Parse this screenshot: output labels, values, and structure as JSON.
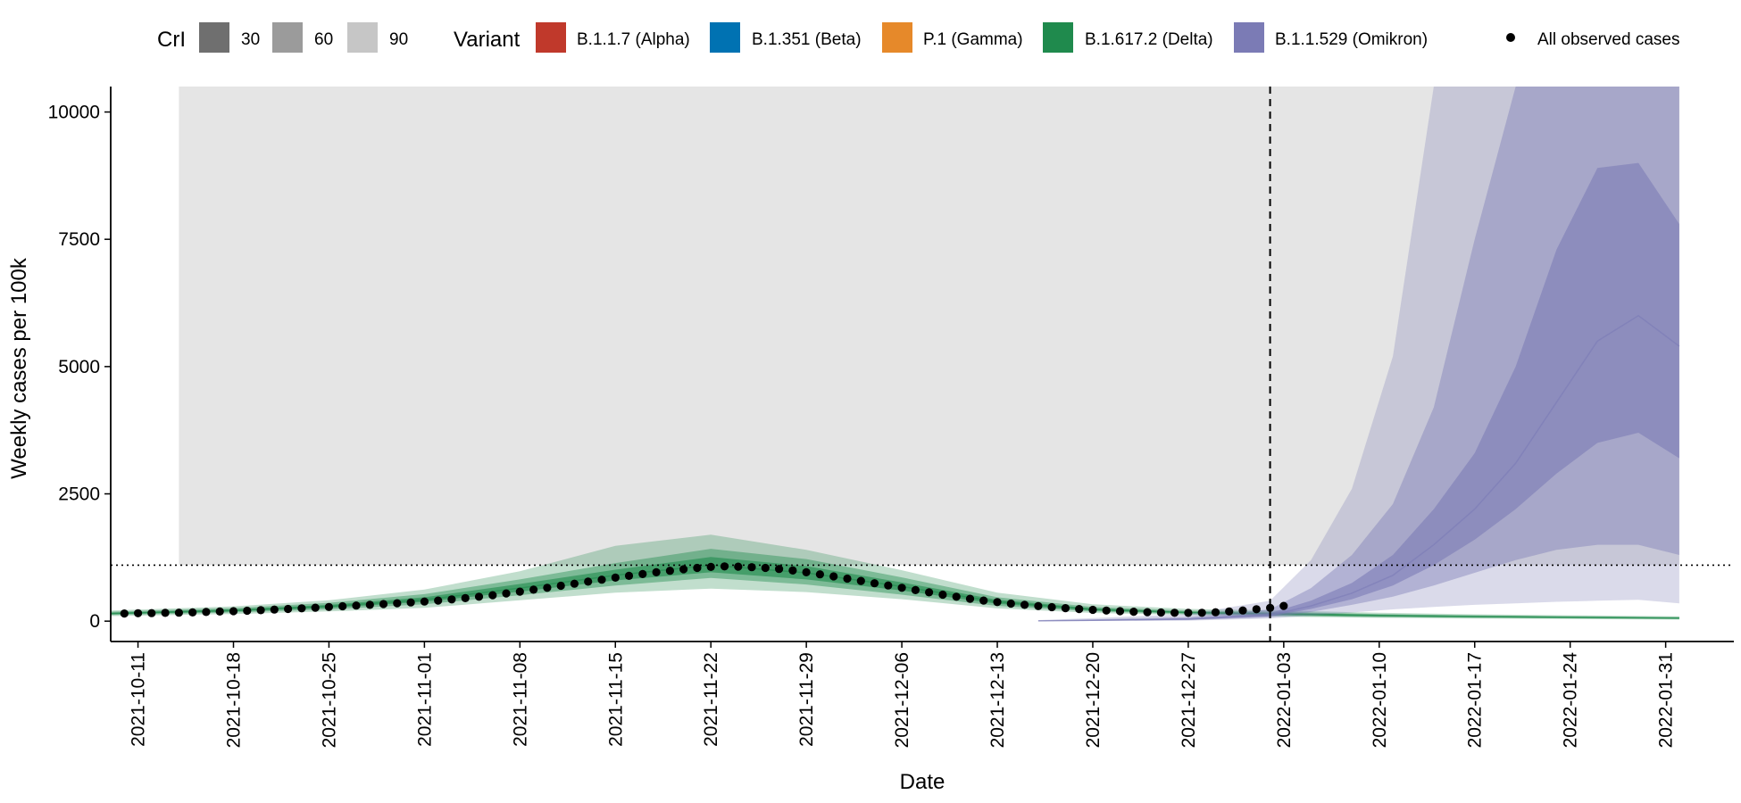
{
  "chart_data": {
    "type": "area",
    "xlabel": "Date",
    "ylabel": "Weekly cases per 100k",
    "x_range": [
      "2021-10-09",
      "2022-02-05"
    ],
    "ylim": [
      -400,
      10500
    ],
    "y_ticks": [
      0,
      2500,
      5000,
      7500,
      10000
    ],
    "y_tick_labels": [
      "0",
      "2500",
      "5000",
      "7500",
      "10000"
    ],
    "x_ticks": [
      "2021-10-11",
      "2021-10-18",
      "2021-10-25",
      "2021-11-01",
      "2021-11-08",
      "2021-11-15",
      "2021-11-22",
      "2021-11-29",
      "2021-12-06",
      "2021-12-13",
      "2021-12-20",
      "2021-12-27",
      "2022-01-03",
      "2022-01-10",
      "2022-01-17",
      "2022-01-24",
      "2022-01-31"
    ],
    "shaded_region": {
      "from": "2021-10-14",
      "to": "2022-02-01"
    },
    "forecast_start": "2022-01-02",
    "reference_level": 1100,
    "legend": {
      "position": "top",
      "cri_title": "CrI",
      "cri_levels": [
        {
          "label": "30",
          "color": "#6f6f6f"
        },
        {
          "label": "60",
          "color": "#9b9b9b"
        },
        {
          "label": "90",
          "color": "#c6c6c6"
        }
      ],
      "variant_title": "Variant",
      "variants": [
        {
          "label": "B.1.1.7 (Alpha)",
          "color": "#c0392b"
        },
        {
          "label": "B.1.351 (Beta)",
          "color": "#0072b2"
        },
        {
          "label": "P.1 (Gamma)",
          "color": "#e6892a"
        },
        {
          "label": "B.1.617.2 (Delta)",
          "color": "#1f8a4d"
        },
        {
          "label": "B.1.1.529 (Omikron)",
          "color": "#7b7bb5"
        }
      ],
      "observed_label": "All observed cases"
    },
    "series": [
      {
        "name": "B.1.617.2 (Delta)",
        "color": "#1f8a4d",
        "x": [
          "2021-10-09",
          "2021-10-18",
          "2021-10-25",
          "2021-11-01",
          "2021-11-08",
          "2021-11-15",
          "2021-11-22",
          "2021-11-29",
          "2021-12-06",
          "2021-12-13",
          "2021-12-20",
          "2021-12-27",
          "2022-01-03",
          "2022-01-10",
          "2022-01-17",
          "2022-01-24",
          "2022-02-01"
        ],
        "median": [
          150,
          210,
          290,
          420,
          650,
          900,
          1100,
          950,
          680,
          380,
          230,
          170,
          140,
          110,
          90,
          75,
          60
        ],
        "ci30": [
          [
            135,
            165
          ],
          [
            190,
            230
          ],
          [
            260,
            320
          ],
          [
            380,
            470
          ],
          [
            580,
            730
          ],
          [
            800,
            1010
          ],
          [
            960,
            1260
          ],
          [
            820,
            1080
          ],
          [
            600,
            760
          ],
          [
            340,
            420
          ],
          [
            210,
            250
          ],
          [
            155,
            185
          ],
          [
            120,
            160
          ],
          [
            95,
            125
          ],
          [
            78,
            102
          ],
          [
            64,
            86
          ],
          [
            50,
            70
          ]
        ],
        "ci60": [
          [
            120,
            185
          ],
          [
            170,
            255
          ],
          [
            230,
            360
          ],
          [
            330,
            530
          ],
          [
            510,
            820
          ],
          [
            700,
            1140
          ],
          [
            850,
            1420
          ],
          [
            720,
            1220
          ],
          [
            520,
            860
          ],
          [
            300,
            470
          ],
          [
            190,
            280
          ],
          [
            140,
            205
          ],
          [
            105,
            180
          ],
          [
            80,
            140
          ],
          [
            65,
            115
          ],
          [
            54,
            98
          ],
          [
            40,
            80
          ]
        ],
        "ci90": [
          [
            100,
            210
          ],
          [
            140,
            290
          ],
          [
            190,
            410
          ],
          [
            260,
            620
          ],
          [
            410,
            980
          ],
          [
            560,
            1480
          ],
          [
            640,
            1700
          ],
          [
            570,
            1400
          ],
          [
            430,
            1000
          ],
          [
            250,
            560
          ],
          [
            160,
            330
          ],
          [
            120,
            240
          ],
          [
            85,
            210
          ],
          [
            65,
            165
          ],
          [
            52,
            135
          ],
          [
            42,
            115
          ],
          [
            30,
            95
          ]
        ]
      },
      {
        "name": "B.1.1.529 (Omikron)",
        "color": "#7b7bb5",
        "x": [
          "2021-12-16",
          "2021-12-20",
          "2021-12-27",
          "2022-01-02",
          "2022-01-05",
          "2022-01-08",
          "2022-01-11",
          "2022-01-14",
          "2022-01-17",
          "2022-01-20",
          "2022-01-23",
          "2022-01-26",
          "2022-01-29",
          "2022-02-01"
        ],
        "median": [
          5,
          15,
          40,
          120,
          300,
          550,
          900,
          1500,
          2200,
          3100,
          4300,
          5500,
          6000,
          5400
        ],
        "ci30": [
          [
            3,
            8
          ],
          [
            10,
            22
          ],
          [
            30,
            55
          ],
          [
            95,
            160
          ],
          [
            240,
            400
          ],
          [
            430,
            750
          ],
          [
            700,
            1300
          ],
          [
            1100,
            2200
          ],
          [
            1600,
            3300
          ],
          [
            2200,
            5000
          ],
          [
            2900,
            7300
          ],
          [
            3500,
            8900
          ],
          [
            3700,
            9000
          ],
          [
            3200,
            7800
          ]
        ],
        "ci60": [
          [
            2,
            12
          ],
          [
            8,
            35
          ],
          [
            20,
            80
          ],
          [
            75,
            230
          ],
          [
            180,
            650
          ],
          [
            320,
            1300
          ],
          [
            480,
            2300
          ],
          [
            700,
            4200
          ],
          [
            950,
            7500
          ],
          [
            1200,
            10500
          ],
          [
            1400,
            10500
          ],
          [
            1500,
            10500
          ],
          [
            1500,
            10500
          ],
          [
            1300,
            10500
          ]
        ],
        "ci90": [
          [
            0,
            20
          ],
          [
            3,
            60
          ],
          [
            10,
            140
          ],
          [
            50,
            400
          ],
          [
            110,
            1200
          ],
          [
            170,
            2600
          ],
          [
            230,
            5200
          ],
          [
            280,
            10500
          ],
          [
            320,
            10500
          ],
          [
            350,
            10500
          ],
          [
            380,
            10500
          ],
          [
            400,
            10500
          ],
          [
            420,
            10500
          ],
          [
            350,
            10500
          ]
        ]
      }
    ],
    "observed": {
      "name": "All observed cases",
      "color": "#000000",
      "x": [
        "2021-10-10",
        "2021-10-11",
        "2021-10-12",
        "2021-10-13",
        "2021-10-14",
        "2021-10-15",
        "2021-10-16",
        "2021-10-17",
        "2021-10-18",
        "2021-10-19",
        "2021-10-20",
        "2021-10-21",
        "2021-10-22",
        "2021-10-23",
        "2021-10-24",
        "2021-10-25",
        "2021-10-26",
        "2021-10-27",
        "2021-10-28",
        "2021-10-29",
        "2021-10-30",
        "2021-10-31",
        "2021-11-01",
        "2021-11-02",
        "2021-11-03",
        "2021-11-04",
        "2021-11-05",
        "2021-11-06",
        "2021-11-07",
        "2021-11-08",
        "2021-11-09",
        "2021-11-10",
        "2021-11-11",
        "2021-11-12",
        "2021-11-13",
        "2021-11-14",
        "2021-11-15",
        "2021-11-16",
        "2021-11-17",
        "2021-11-18",
        "2021-11-19",
        "2021-11-20",
        "2021-11-21",
        "2021-11-22",
        "2021-11-23",
        "2021-11-24",
        "2021-11-25",
        "2021-11-26",
        "2021-11-27",
        "2021-11-28",
        "2021-11-29",
        "2021-11-30",
        "2021-12-01",
        "2021-12-02",
        "2021-12-03",
        "2021-12-04",
        "2021-12-05",
        "2021-12-06",
        "2021-12-07",
        "2021-12-08",
        "2021-12-09",
        "2021-12-10",
        "2021-12-11",
        "2021-12-12",
        "2021-12-13",
        "2021-12-14",
        "2021-12-15",
        "2021-12-16",
        "2021-12-17",
        "2021-12-18",
        "2021-12-19",
        "2021-12-20",
        "2021-12-21",
        "2021-12-22",
        "2021-12-23",
        "2021-12-24",
        "2021-12-25",
        "2021-12-26",
        "2021-12-27",
        "2021-12-28",
        "2021-12-29",
        "2021-12-30",
        "2021-12-31",
        "2022-01-01",
        "2022-01-02",
        "2022-01-03"
      ],
      "y": [
        150,
        155,
        158,
        162,
        166,
        172,
        180,
        188,
        195,
        205,
        215,
        228,
        240,
        252,
        265,
        278,
        292,
        306,
        320,
        336,
        352,
        368,
        385,
        405,
        428,
        452,
        480,
        510,
        545,
        580,
        618,
        655,
        695,
        735,
        775,
        815,
        855,
        890,
        925,
        960,
        990,
        1020,
        1045,
        1065,
        1075,
        1070,
        1060,
        1045,
        1025,
        995,
        960,
        920,
        880,
        835,
        790,
        745,
        700,
        655,
        610,
        565,
        520,
        480,
        440,
        405,
        375,
        345,
        320,
        295,
        275,
        255,
        238,
        222,
        208,
        196,
        186,
        177,
        170,
        165,
        162,
        165,
        175,
        190,
        210,
        235,
        260,
        300
      ]
    }
  }
}
